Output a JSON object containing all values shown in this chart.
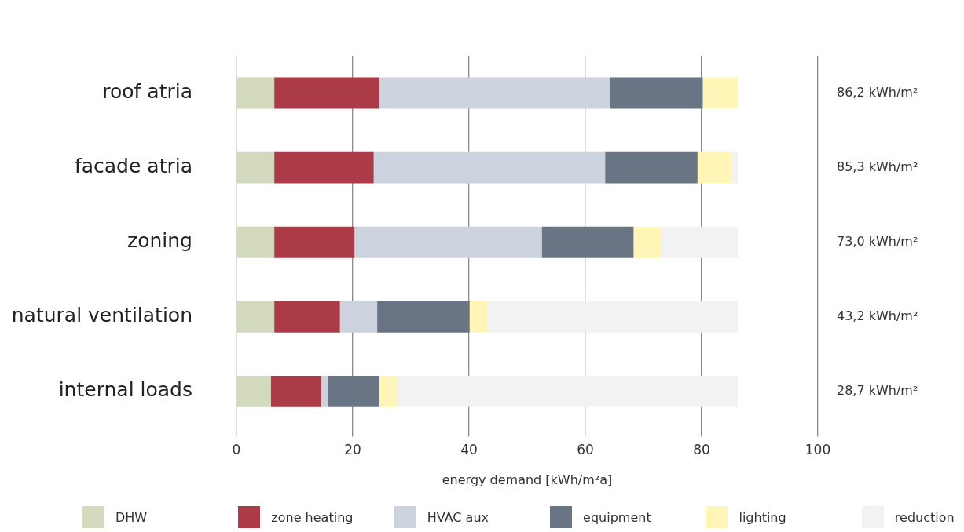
{
  "chart_data": {
    "type": "bar",
    "orientation": "horizontal",
    "stacked": true,
    "xlabel": "energy demand [kWh/m²a]",
    "categories": [
      "roof atria",
      "facade atria",
      "zoning",
      "natural ventilation",
      "internal loads"
    ],
    "series": [
      {
        "name": "DHW",
        "color": "#d3d9bc",
        "values": [
          6.5,
          6.5,
          6.5,
          6.5,
          5.9
        ]
      },
      {
        "name": "zone heating",
        "color": "#ab3b47",
        "values": [
          18.1,
          17.1,
          13.8,
          11.3,
          8.7
        ]
      },
      {
        "name": "HVAC aux",
        "color": "#ccd3de",
        "values": [
          39.7,
          39.8,
          32.2,
          6.4,
          1.2
        ]
      },
      {
        "name": "equipment",
        "color": "#697585",
        "values": [
          15.9,
          15.9,
          15.8,
          15.9,
          8.8
        ]
      },
      {
        "name": "lighting",
        "color": "#fef5b6",
        "values": [
          6.0,
          6.0,
          4.7,
          3.1,
          3.0
        ]
      },
      {
        "name": "reduction",
        "color": "#f2f2f2",
        "values": [
          0,
          0.9,
          13.2,
          43.0,
          58.6
        ]
      }
    ],
    "xlim": [
      0,
      100
    ],
    "xticks": [
      0,
      20,
      40,
      60,
      80,
      100
    ],
    "grid": "x",
    "legend": "bottom",
    "annotations": [
      "86,2 kWh/m²",
      "85,3 kWh/m²",
      "73,0 kWh/m²",
      "43,2 kWh/m²",
      "28,7 kWh/m²"
    ]
  }
}
